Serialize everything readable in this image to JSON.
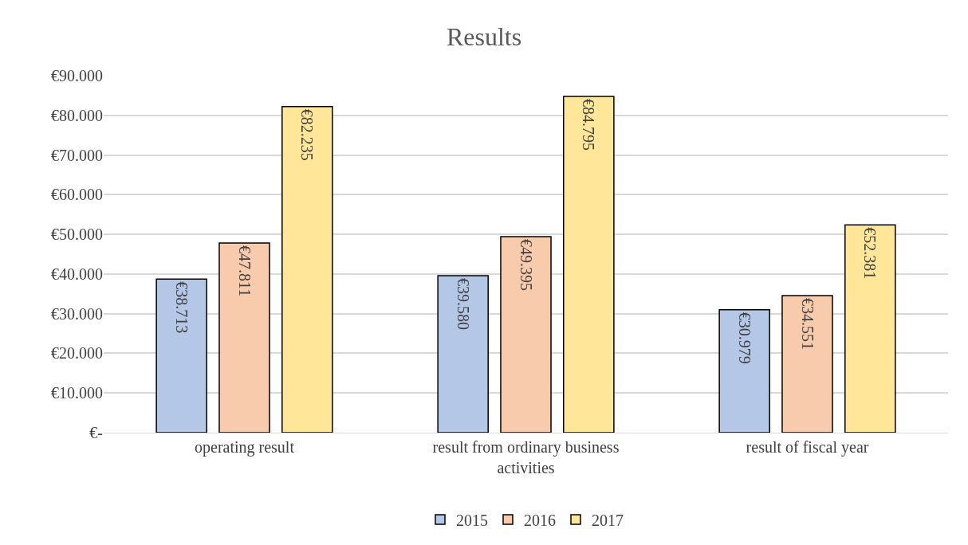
{
  "chart_data": {
    "type": "bar",
    "title": "Results",
    "categories": [
      "operating result",
      "result from ordinary business activities",
      "result of fiscal year"
    ],
    "series": [
      {
        "name": "2015",
        "color": "#b4c7e7",
        "values": [
          38713,
          39580,
          30979
        ],
        "value_labels": [
          "€38.713",
          "€39.580",
          "€30.979"
        ]
      },
      {
        "name": "2016",
        "color": "#f8cbad",
        "values": [
          47811,
          49395,
          34551
        ],
        "value_labels": [
          "€47.811",
          "€49.395",
          "€34.551"
        ]
      },
      {
        "name": "2017",
        "color": "#ffe699",
        "values": [
          82235,
          84795,
          52381
        ],
        "value_labels": [
          "€82.235",
          "€84.795",
          "€52.381"
        ]
      }
    ],
    "ylim": [
      0,
      90000
    ],
    "yticks": [
      {
        "value": 0,
        "label": "€-"
      },
      {
        "value": 10000,
        "label": "€10.000"
      },
      {
        "value": 20000,
        "label": "€20.000"
      },
      {
        "value": 30000,
        "label": "€30.000"
      },
      {
        "value": 40000,
        "label": "€40.000"
      },
      {
        "value": 50000,
        "label": "€50.000"
      },
      {
        "value": 60000,
        "label": "€60.000"
      },
      {
        "value": 70000,
        "label": "€70.000"
      },
      {
        "value": 80000,
        "label": "€80.000"
      },
      {
        "value": 90000,
        "label": "€90.000"
      }
    ],
    "grid": "y",
    "legend": "bottom"
  }
}
